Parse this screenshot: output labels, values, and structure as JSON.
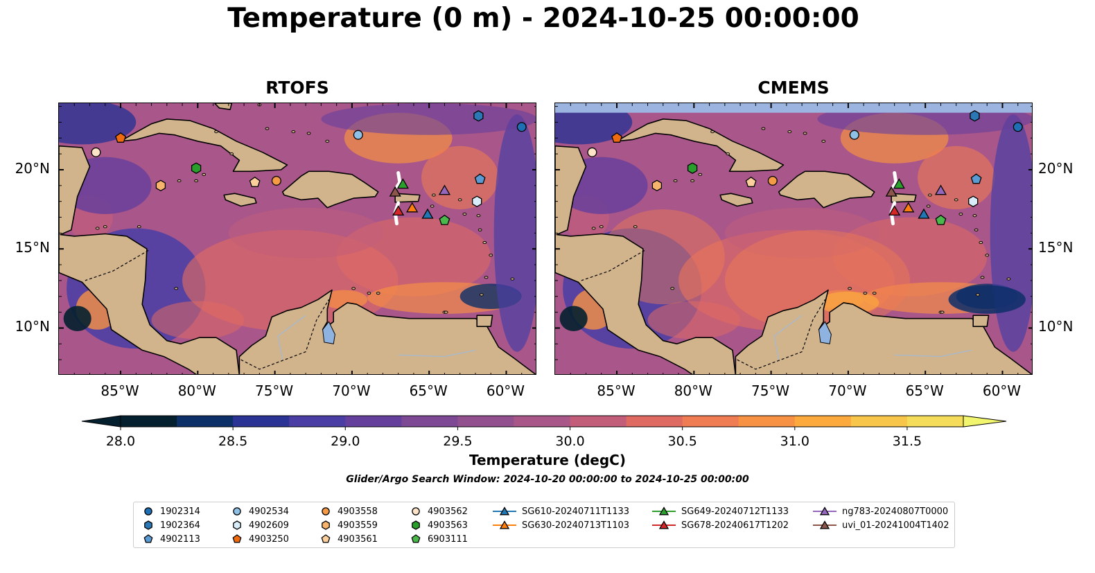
{
  "title": "Temperature (0 m) - 2024-10-25 00:00:00",
  "panels": [
    {
      "title": "RTOFS"
    },
    {
      "title": "CMEMS"
    }
  ],
  "axes": {
    "lat_labels": [
      "20°N",
      "15°N",
      "10°N"
    ],
    "lon_labels": [
      "85°W",
      "80°W",
      "75°W",
      "70°W",
      "65°W",
      "60°W"
    ],
    "lat_values": [
      20,
      15,
      10
    ],
    "lon_values": [
      -85,
      -80,
      -75,
      -70,
      -65,
      -60
    ],
    "extent": {
      "lon_min": -89,
      "lon_max": -58,
      "lat_min": 7,
      "lat_max": 24.2
    }
  },
  "colorbar": {
    "label": "Temperature (degC)",
    "ticks": [
      "28.0",
      "28.5",
      "29.0",
      "29.5",
      "30.0",
      "30.5",
      "31.0",
      "31.5"
    ],
    "min": 28.0,
    "max": 31.5,
    "colors": [
      "#04202f",
      "#0d2f68",
      "#2b3394",
      "#4a3ea4",
      "#653f9c",
      "#7d4894",
      "#92508f",
      "#a95688",
      "#c25e7a",
      "#de6a62",
      "#ef7c52",
      "#f79143",
      "#fcaa3e",
      "#f8c64a",
      "#f5dd5b"
    ],
    "extend_color": "#f2f56e"
  },
  "search_window": "Glider/Argo Search Window: 2024-10-20 00:00:00 to 2024-10-25 00:00:00",
  "colors": {
    "land": "#d2b48c",
    "ocean_mid": "#a9568a",
    "lake": "#8fb3e0",
    "nodata": "#9bb5e0"
  },
  "legend": [
    {
      "label": "1902314",
      "marker": "circle",
      "color": "#1f6fb4"
    },
    {
      "label": "1902364",
      "marker": "hexagon",
      "color": "#2b78b5"
    },
    {
      "label": "4902113",
      "marker": "pentagon",
      "color": "#5a9bd4"
    },
    {
      "label": "4902534",
      "marker": "circle",
      "color": "#8fc0e6"
    },
    {
      "label": "4902609",
      "marker": "hexagon",
      "color": "#d9ecf9"
    },
    {
      "label": "4903250",
      "marker": "pentagon",
      "color": "#f06a10"
    },
    {
      "label": "4903558",
      "marker": "circle",
      "color": "#f59a45"
    },
    {
      "label": "4903559",
      "marker": "hexagon",
      "color": "#f7b46c"
    },
    {
      "label": "4903561",
      "marker": "pentagon",
      "color": "#fbd09c"
    },
    {
      "label": "4903562",
      "marker": "circle",
      "color": "#fde4c8"
    },
    {
      "label": "4903563",
      "marker": "hexagon",
      "color": "#2a9e2a"
    },
    {
      "label": "6903111",
      "marker": "pentagon",
      "color": "#4bb84b"
    },
    {
      "label": "SG610-20240711T1133",
      "marker": "triangle",
      "color": "#1f77b4"
    },
    {
      "label": "SG630-20240713T1103",
      "marker": "triangle",
      "color": "#ff7f0e"
    },
    {
      "label": "SG649-20240712T1133",
      "marker": "triangle",
      "color": "#2ca02c"
    },
    {
      "label": "SG678-20240617T1202",
      "marker": "triangle",
      "color": "#d62728"
    },
    {
      "label": "ng783-20240807T0000",
      "marker": "triangle",
      "color": "#9467bd"
    },
    {
      "label": "uvi_01-20241004T1402",
      "marker": "triangle",
      "color": "#8c564b"
    }
  ],
  "stations": [
    {
      "id": "1902314",
      "lon": -59.0,
      "lat": 22.7
    },
    {
      "id": "1902364",
      "lon": -61.8,
      "lat": 23.4
    },
    {
      "id": "4902113",
      "lon": -61.7,
      "lat": 19.4
    },
    {
      "id": "4902534",
      "lon": -69.6,
      "lat": 22.2
    },
    {
      "id": "4902609",
      "lon": -61.9,
      "lat": 18.0
    },
    {
      "id": "4903250",
      "lon": -85.0,
      "lat": 22.0
    },
    {
      "id": "4903558",
      "lon": -74.9,
      "lat": 19.3
    },
    {
      "id": "4903559",
      "lon": -82.4,
      "lat": 19.0
    },
    {
      "id": "4903561",
      "lon": -76.3,
      "lat": 19.2
    },
    {
      "id": "4903562",
      "lon": -86.6,
      "lat": 21.1
    },
    {
      "id": "4903563",
      "lon": -80.1,
      "lat": 20.1
    },
    {
      "id": "6903111",
      "lon": -64.0,
      "lat": 16.8
    },
    {
      "id": "SG610-20240711T1133",
      "lon": -65.1,
      "lat": 17.2
    },
    {
      "id": "SG630-20240713T1103",
      "lon": -66.1,
      "lat": 17.6
    },
    {
      "id": "SG649-20240712T1133",
      "lon": -66.7,
      "lat": 19.1
    },
    {
      "id": "SG678-20240617T1202",
      "lon": -67.0,
      "lat": 17.4
    },
    {
      "id": "ng783-20240807T0000",
      "lon": -64.0,
      "lat": 18.7
    },
    {
      "id": "uvi_01-20241004T1402",
      "lon": -67.2,
      "lat": 18.6
    }
  ]
}
